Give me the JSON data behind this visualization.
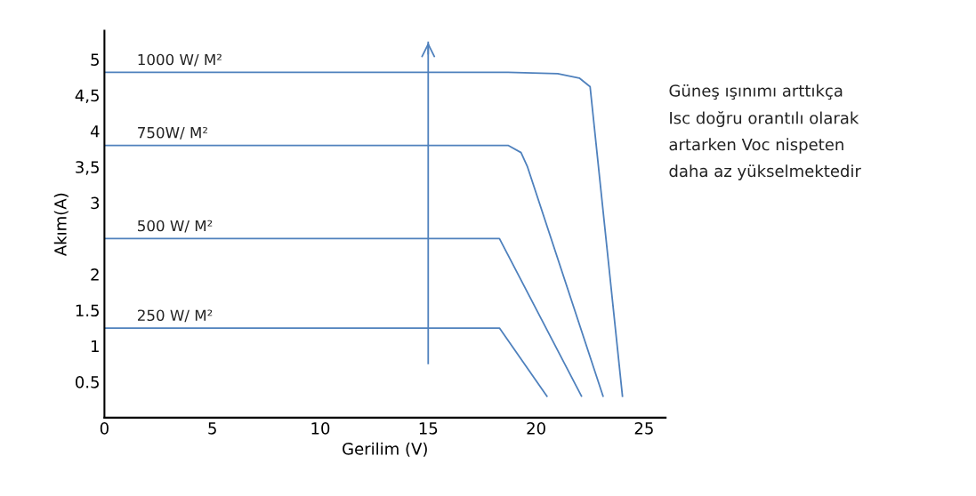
{
  "chart_data": {
    "type": "line",
    "xlabel": "Gerilim (V)",
    "ylabel": "Akım(A)",
    "xlim": [
      0,
      26
    ],
    "ylim": [
      0,
      5.4
    ],
    "xticks": [
      0,
      5,
      10,
      15,
      20,
      25
    ],
    "yticks": [
      0.5,
      1,
      1.5,
      2,
      3,
      {
        "value": 3.5,
        "label": "3,5"
      },
      4,
      {
        "value": 4.5,
        "label": "4,5"
      },
      5
    ],
    "ref_lines": [
      {
        "axis": "x",
        "value": 15,
        "color": "#4f81bd",
        "line_style": "solid"
      }
    ],
    "grid": false,
    "legend": false,
    "marker": "none",
    "line_style": "solid",
    "series": [
      {
        "name": "1000 W/ M²",
        "color": "#4f81bd",
        "x": [
          0,
          18.7,
          21,
          22,
          22.5,
          24.0
        ],
        "values": [
          4.82,
          4.82,
          4.8,
          4.74,
          4.62,
          0.3
        ]
      },
      {
        "name": "750W/ M²",
        "color": "#4f81bd",
        "x": [
          0,
          18.7,
          19.3,
          19.6,
          23.1
        ],
        "values": [
          3.8,
          3.8,
          3.7,
          3.5,
          0.3
        ]
      },
      {
        "name": "500 W/ M²",
        "color": "#4f81bd",
        "x": [
          0,
          18.3,
          22.1
        ],
        "values": [
          2.5,
          2.5,
          0.3
        ]
      },
      {
        "name": "250 W/ M²",
        "color": "#4f81bd",
        "x": [
          0,
          18.3,
          20.5
        ],
        "values": [
          1.25,
          1.25,
          0.3
        ]
      }
    ],
    "annotations": [
      "Güneş ışınımı arttıkça\nIsc doğru orantılı olarak\nartarken Voc nispeten\ndaha az yükselmektedir"
    ]
  }
}
